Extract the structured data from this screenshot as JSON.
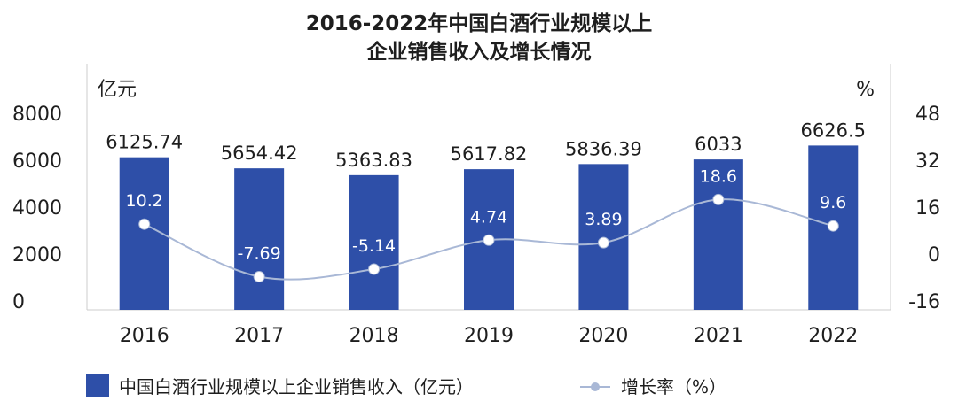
{
  "chart_data": {
    "type": "bar",
    "title_lines": [
      "2016-2022年中国白酒行业规模以上",
      "企业销售收入及增长情况"
    ],
    "categories": [
      "2016",
      "2017",
      "2018",
      "2019",
      "2020",
      "2021",
      "2022"
    ],
    "series": [
      {
        "name": "中国白酒行业规模以上企业销售收入（亿元）",
        "type": "bar",
        "axis": "left",
        "color": "#2e4fa8",
        "values": [
          6125.74,
          5654.42,
          5363.83,
          5617.82,
          5836.39,
          6033,
          6626.5
        ],
        "labels": [
          "6125.74",
          "5654.42",
          "5363.83",
          "5617.82",
          "5836.39",
          "6033",
          "6626.5"
        ]
      },
      {
        "name": "增长率（%）",
        "type": "line",
        "axis": "right",
        "color": "#a9b8d6",
        "values": [
          10.2,
          -7.69,
          -5.14,
          4.74,
          3.89,
          18.6,
          9.6
        ],
        "labels": [
          "10.2",
          "-7.69",
          "-5.14",
          "4.74",
          "3.89",
          "18.6",
          "9.6"
        ]
      }
    ],
    "left_axis": {
      "unit": "亿元",
      "ticks": [
        "8000",
        "6000",
        "4000",
        "2000",
        "0"
      ],
      "ylim": [
        0,
        8000
      ]
    },
    "right_axis": {
      "unit": "%",
      "ticks": [
        "48",
        "32",
        "16",
        "0",
        "-16"
      ],
      "ylim": [
        -16,
        48
      ]
    },
    "grid": false,
    "legend_position": "bottom"
  }
}
